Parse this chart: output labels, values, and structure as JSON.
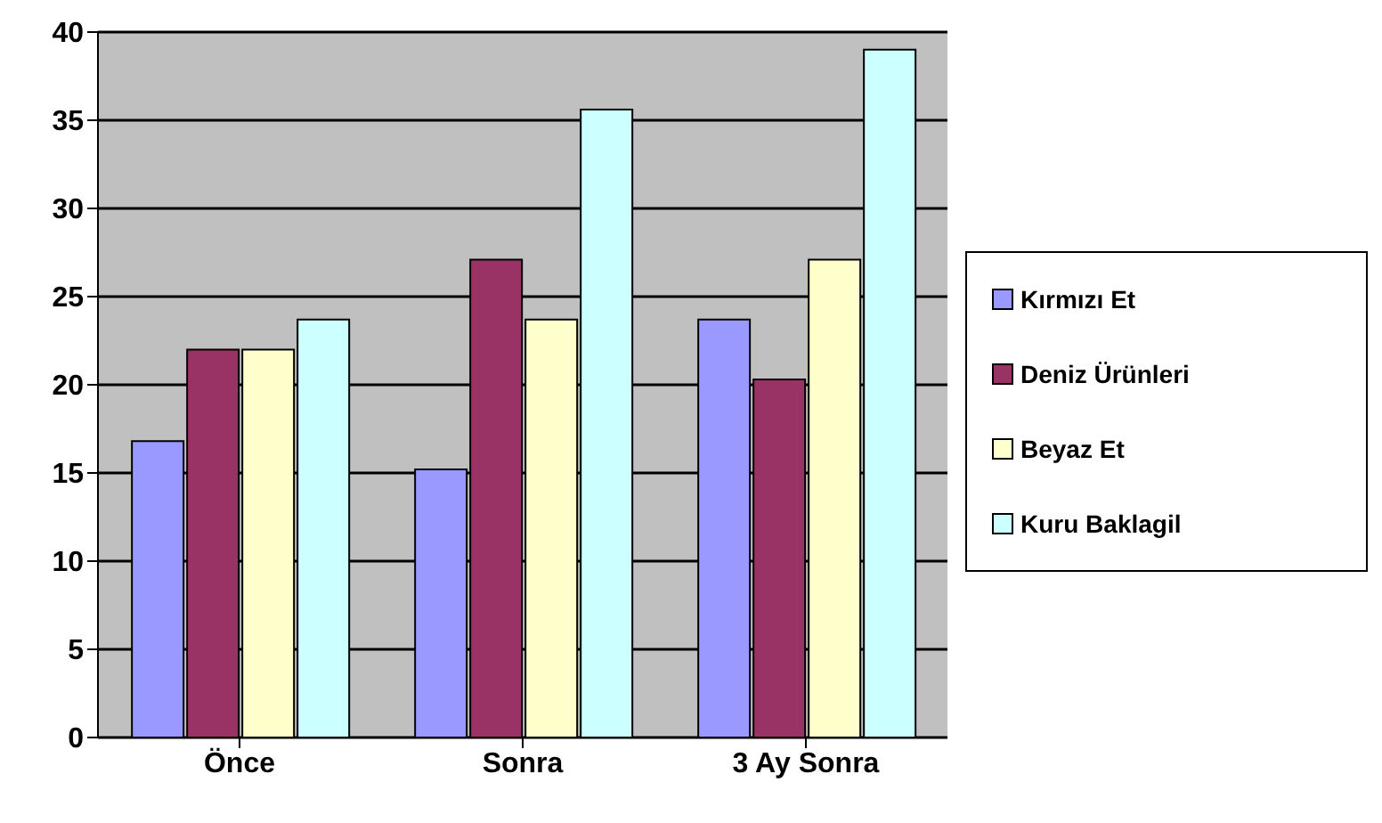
{
  "chart_data": {
    "type": "bar",
    "categories": [
      "Önce",
      "Sonra",
      "3 Ay Sonra"
    ],
    "series": [
      {
        "name": "Kırmızı Et",
        "color": "#9999ff",
        "values": [
          16.8,
          15.2,
          23.7
        ]
      },
      {
        "name": "Deniz Ürünleri",
        "color": "#993366",
        "values": [
          22.0,
          27.1,
          20.3
        ]
      },
      {
        "name": "Beyaz Et",
        "color": "#ffffcc",
        "values": [
          22.0,
          23.7,
          27.1
        ]
      },
      {
        "name": "Kuru Baklagil",
        "color": "#ccffff",
        "values": [
          23.7,
          35.6,
          39.0
        ]
      }
    ],
    "ylim": [
      0,
      40
    ],
    "yticks": [
      0,
      5,
      10,
      15,
      20,
      25,
      30,
      35,
      40
    ],
    "grid": "y",
    "legend": "right"
  }
}
